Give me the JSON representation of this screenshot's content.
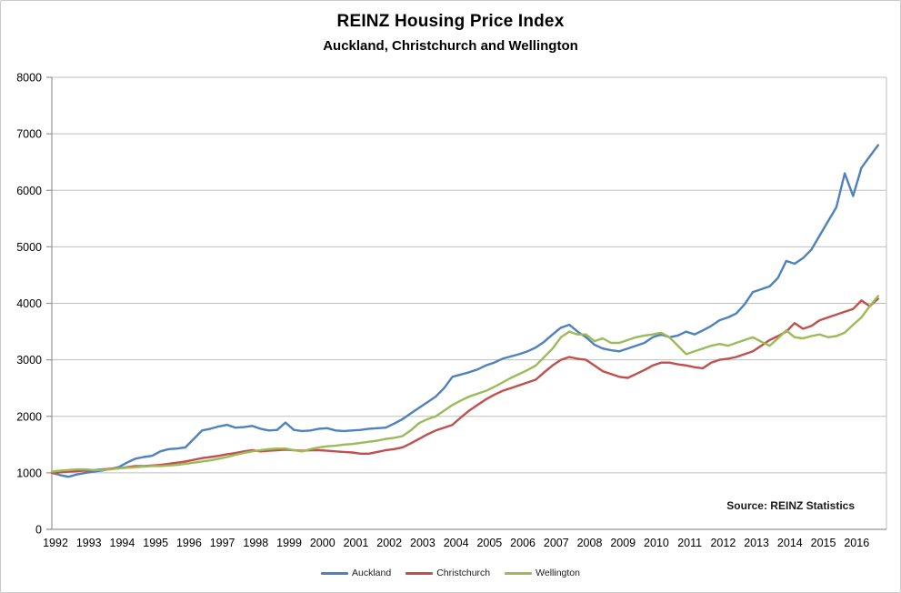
{
  "title": "REINZ Housing Price Index",
  "subtitle": "Auckland, Christchurch and Wellington",
  "source_note": "Source: REINZ Statistics",
  "chart_data": {
    "type": "line",
    "title": "REINZ Housing Price Index",
    "subtitle": "Auckland, Christchurch and Wellington",
    "xlabel": "",
    "ylabel": "",
    "ylim": [
      0,
      8000
    ],
    "yticks": [
      0,
      1000,
      2000,
      3000,
      4000,
      5000,
      6000,
      7000,
      8000
    ],
    "xticklabels": [
      "1992",
      "1993",
      "1994",
      "1995",
      "1996",
      "1997",
      "1998",
      "1999",
      "2000",
      "2001",
      "2002",
      "2003",
      "2004",
      "2005",
      "2006",
      "2007",
      "2008",
      "2009",
      "2010",
      "2011",
      "2012",
      "2013",
      "2014",
      "2015",
      "2016"
    ],
    "x_start_year": 1992,
    "x_step_years": 0.25,
    "grid": "horizontal",
    "gridline_color": "#bfbfbf",
    "axis_color": "#969696",
    "legend_position": "bottom",
    "source": "Source: REINZ Statistics",
    "series": [
      {
        "name": "Auckland",
        "color": "#4F81BD",
        "values": [
          1000,
          960,
          930,
          970,
          1000,
          1020,
          1040,
          1070,
          1100,
          1180,
          1250,
          1280,
          1300,
          1380,
          1420,
          1430,
          1450,
          1600,
          1750,
          1780,
          1820,
          1850,
          1800,
          1810,
          1830,
          1780,
          1750,
          1760,
          1890,
          1760,
          1740,
          1750,
          1780,
          1790,
          1750,
          1740,
          1750,
          1760,
          1780,
          1790,
          1800,
          1870,
          1950,
          2050,
          2150,
          2250,
          2350,
          2500,
          2700,
          2740,
          2780,
          2830,
          2900,
          2950,
          3020,
          3060,
          3100,
          3150,
          3220,
          3320,
          3450,
          3570,
          3620,
          3500,
          3400,
          3270,
          3200,
          3170,
          3150,
          3200,
          3250,
          3300,
          3400,
          3450,
          3400,
          3430,
          3500,
          3450,
          3520,
          3600,
          3700,
          3750,
          3820,
          3980,
          4200,
          4250,
          4300,
          4450,
          4750,
          4700,
          4800,
          4950,
          5200,
          5450,
          5700,
          6300,
          5900,
          6400,
          6600,
          6800
        ]
      },
      {
        "name": "Christchurch",
        "color": "#C0504D",
        "values": [
          1000,
          1010,
          1020,
          1030,
          1040,
          1050,
          1060,
          1070,
          1080,
          1100,
          1120,
          1120,
          1130,
          1140,
          1160,
          1180,
          1200,
          1230,
          1260,
          1280,
          1300,
          1330,
          1350,
          1380,
          1400,
          1380,
          1390,
          1400,
          1410,
          1400,
          1390,
          1400,
          1400,
          1390,
          1380,
          1370,
          1360,
          1340,
          1340,
          1370,
          1400,
          1420,
          1450,
          1520,
          1600,
          1680,
          1750,
          1800,
          1850,
          1980,
          2100,
          2200,
          2300,
          2380,
          2450,
          2500,
          2550,
          2600,
          2650,
          2780,
          2900,
          3000,
          3050,
          3020,
          3000,
          2900,
          2800,
          2750,
          2700,
          2680,
          2750,
          2820,
          2900,
          2950,
          2950,
          2920,
          2900,
          2870,
          2850,
          2950,
          3000,
          3020,
          3050,
          3100,
          3150,
          3250,
          3350,
          3420,
          3500,
          3650,
          3550,
          3600,
          3700,
          3750,
          3800,
          3850,
          3900,
          4050,
          3950,
          4080
        ]
      },
      {
        "name": "Wellington",
        "color": "#9BBB59",
        "values": [
          1020,
          1040,
          1050,
          1060,
          1060,
          1050,
          1050,
          1060,
          1080,
          1090,
          1100,
          1110,
          1120,
          1120,
          1130,
          1140,
          1160,
          1180,
          1200,
          1220,
          1250,
          1280,
          1320,
          1350,
          1380,
          1400,
          1420,
          1430,
          1430,
          1400,
          1380,
          1420,
          1450,
          1470,
          1480,
          1500,
          1510,
          1530,
          1550,
          1570,
          1600,
          1620,
          1650,
          1750,
          1880,
          1950,
          2000,
          2100,
          2200,
          2280,
          2350,
          2400,
          2450,
          2520,
          2600,
          2680,
          2750,
          2820,
          2900,
          3050,
          3200,
          3400,
          3500,
          3450,
          3450,
          3330,
          3380,
          3300,
          3300,
          3350,
          3400,
          3430,
          3450,
          3480,
          3400,
          3250,
          3100,
          3150,
          3200,
          3250,
          3280,
          3250,
          3300,
          3350,
          3400,
          3320,
          3250,
          3380,
          3520,
          3400,
          3380,
          3420,
          3450,
          3400,
          3420,
          3480,
          3620,
          3750,
          3950,
          4130
        ]
      }
    ]
  }
}
